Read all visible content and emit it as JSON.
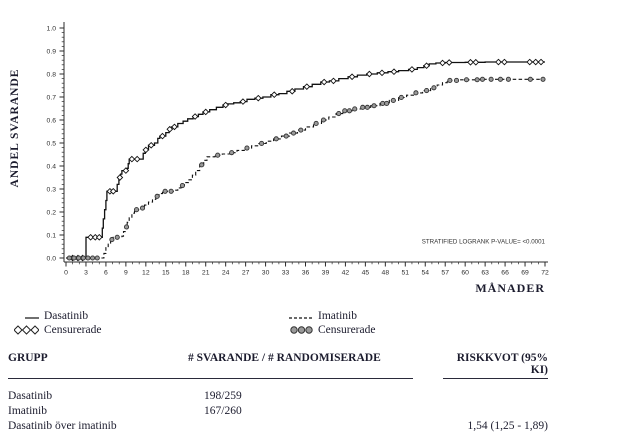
{
  "figure": {
    "background": "#ffffff",
    "text_color": "#1c1c2e",
    "curve_color": "#111111",
    "axis_color": "#2b2b2b",
    "censor_circle_fill": "#9a9a9a"
  },
  "chart": {
    "y_axis_label": "ANDEL SVARANDE",
    "x_axis_label": "MÅNADER",
    "annotation": "STRATIFIED LOGRANK P-VALUE= <0.0001"
  },
  "chart_data": {
    "type": "line",
    "subtype": "kaplan-meier-step",
    "title": "",
    "xlabel": "MÅNADER",
    "ylabel": "ANDEL SVARANDE",
    "xlim": [
      0,
      72
    ],
    "ylim": [
      0.0,
      1.0
    ],
    "grid": false,
    "legend_position": "below",
    "x_ticks": [
      0,
      3,
      6,
      9,
      12,
      15,
      18,
      21,
      24,
      27,
      30,
      33,
      36,
      39,
      42,
      45,
      48,
      51,
      54,
      57,
      60,
      63,
      66,
      69,
      72
    ],
    "y_ticks": [
      "0.0",
      "0.1",
      "0.2",
      "0.3",
      "0.4",
      "0.5",
      "0.6",
      "0.7",
      "0.8",
      "0.9",
      "1.0"
    ],
    "annotation": "STRATIFIED LOGRANK P-VALUE= <0.0001",
    "series": [
      {
        "name": "Dasatinib",
        "line": "solid",
        "marker": "diamond",
        "censored_label": "Censurerade",
        "steps": [
          [
            0,
            0
          ],
          [
            3,
            0
          ],
          [
            3,
            0.09
          ],
          [
            5.3,
            0.09
          ],
          [
            5.45,
            0.13
          ],
          [
            5.6,
            0.17
          ],
          [
            5.8,
            0.21
          ],
          [
            6,
            0.25
          ],
          [
            6.15,
            0.29
          ],
          [
            7.5,
            0.29
          ],
          [
            7.7,
            0.32
          ],
          [
            7.95,
            0.35
          ],
          [
            8.2,
            0.365
          ],
          [
            8.4,
            0.38
          ],
          [
            9.2,
            0.39
          ],
          [
            9.35,
            0.41
          ],
          [
            9.5,
            0.43
          ],
          [
            11.3,
            0.43
          ],
          [
            11.6,
            0.455
          ],
          [
            11.9,
            0.47
          ],
          [
            12.4,
            0.49
          ],
          [
            13.3,
            0.5
          ],
          [
            13.8,
            0.52
          ],
          [
            14.1,
            0.53
          ],
          [
            15,
            0.545
          ],
          [
            15.5,
            0.56
          ],
          [
            15.9,
            0.57
          ],
          [
            16.8,
            0.585
          ],
          [
            17.6,
            0.595
          ],
          [
            18.3,
            0.605
          ],
          [
            19.1,
            0.615
          ],
          [
            19.9,
            0.625
          ],
          [
            20.6,
            0.635
          ],
          [
            21.6,
            0.645
          ],
          [
            22.6,
            0.655
          ],
          [
            23.6,
            0.665
          ],
          [
            24.3,
            0.67
          ],
          [
            25.2,
            0.675
          ],
          [
            26.2,
            0.68
          ],
          [
            27.2,
            0.69
          ],
          [
            28.4,
            0.695
          ],
          [
            29.6,
            0.7
          ],
          [
            30.8,
            0.71
          ],
          [
            32,
            0.715
          ],
          [
            33.2,
            0.725
          ],
          [
            34.4,
            0.735
          ],
          [
            35.7,
            0.745
          ],
          [
            37,
            0.755
          ],
          [
            38.3,
            0.765
          ],
          [
            39.6,
            0.77
          ],
          [
            41,
            0.78
          ],
          [
            42.4,
            0.788
          ],
          [
            43.8,
            0.795
          ],
          [
            45.2,
            0.8
          ],
          [
            46.8,
            0.805
          ],
          [
            48.4,
            0.81
          ],
          [
            50,
            0.815
          ],
          [
            51.5,
            0.82
          ],
          [
            52.8,
            0.828
          ],
          [
            53.8,
            0.836
          ],
          [
            54.6,
            0.844
          ],
          [
            55.6,
            0.848
          ],
          [
            57,
            0.85
          ],
          [
            60,
            0.851
          ],
          [
            63,
            0.852
          ],
          [
            72,
            0.852
          ]
        ],
        "censored": [
          [
            1,
            0
          ],
          [
            1.8,
            0
          ],
          [
            2.5,
            0
          ],
          [
            3.7,
            0.09
          ],
          [
            4.4,
            0.09
          ],
          [
            5,
            0.09
          ],
          [
            6.6,
            0.29
          ],
          [
            7.1,
            0.29
          ],
          [
            8.1,
            0.35
          ],
          [
            9,
            0.38
          ],
          [
            9.9,
            0.43
          ],
          [
            10.7,
            0.43
          ],
          [
            12,
            0.47
          ],
          [
            12.8,
            0.49
          ],
          [
            14.5,
            0.53
          ],
          [
            15.6,
            0.56
          ],
          [
            16.3,
            0.57
          ],
          [
            19.4,
            0.615
          ],
          [
            21,
            0.635
          ],
          [
            24,
            0.665
          ],
          [
            26.6,
            0.68
          ],
          [
            28.9,
            0.695
          ],
          [
            31.3,
            0.71
          ],
          [
            34,
            0.725
          ],
          [
            36.2,
            0.745
          ],
          [
            38.8,
            0.765
          ],
          [
            40.2,
            0.77
          ],
          [
            43,
            0.788
          ],
          [
            45.6,
            0.8
          ],
          [
            47.5,
            0.805
          ],
          [
            49.3,
            0.81
          ],
          [
            52,
            0.82
          ],
          [
            54.2,
            0.836
          ],
          [
            56.6,
            0.848
          ],
          [
            57.6,
            0.85
          ],
          [
            60.8,
            0.851
          ],
          [
            61.6,
            0.851
          ],
          [
            65,
            0.852
          ],
          [
            65.9,
            0.852
          ],
          [
            69.7,
            0.852
          ],
          [
            70.6,
            0.852
          ],
          [
            71.4,
            0.852
          ]
        ]
      },
      {
        "name": "Imatinib",
        "line": "dashed",
        "marker": "circle",
        "censored_label": "Censurerade",
        "steps": [
          [
            0,
            0
          ],
          [
            5.5,
            0
          ],
          [
            5.7,
            0.02
          ],
          [
            6,
            0.045
          ],
          [
            6.35,
            0.065
          ],
          [
            6.7,
            0.08
          ],
          [
            7.1,
            0.09
          ],
          [
            8.4,
            0.095
          ],
          [
            8.65,
            0.115
          ],
          [
            8.9,
            0.135
          ],
          [
            9.2,
            0.155
          ],
          [
            9.5,
            0.175
          ],
          [
            9.9,
            0.195
          ],
          [
            10.3,
            0.21
          ],
          [
            11.3,
            0.217
          ],
          [
            11.8,
            0.23
          ],
          [
            12.4,
            0.243
          ],
          [
            13,
            0.255
          ],
          [
            13.5,
            0.268
          ],
          [
            14,
            0.28
          ],
          [
            14.5,
            0.29
          ],
          [
            16.3,
            0.295
          ],
          [
            16.8,
            0.305
          ],
          [
            17.3,
            0.315
          ],
          [
            17.8,
            0.328
          ],
          [
            18.4,
            0.34
          ],
          [
            19,
            0.36
          ],
          [
            19.5,
            0.38
          ],
          [
            20.1,
            0.405
          ],
          [
            20.7,
            0.425
          ],
          [
            21.2,
            0.44
          ],
          [
            22.4,
            0.447
          ],
          [
            23.5,
            0.452
          ],
          [
            24.6,
            0.458
          ],
          [
            25.7,
            0.468
          ],
          [
            26.8,
            0.478
          ],
          [
            27.9,
            0.488
          ],
          [
            29,
            0.498
          ],
          [
            30.1,
            0.508
          ],
          [
            31.2,
            0.518
          ],
          [
            32.4,
            0.53
          ],
          [
            33.6,
            0.543
          ],
          [
            34.8,
            0.556
          ],
          [
            36,
            0.57
          ],
          [
            37.2,
            0.585
          ],
          [
            38.4,
            0.6
          ],
          [
            39.5,
            0.613
          ],
          [
            40.6,
            0.628
          ],
          [
            41.6,
            0.64
          ],
          [
            43,
            0.648
          ],
          [
            44.4,
            0.655
          ],
          [
            45.8,
            0.662
          ],
          [
            47.2,
            0.672
          ],
          [
            48.6,
            0.685
          ],
          [
            50,
            0.698
          ],
          [
            51.2,
            0.708
          ],
          [
            52.4,
            0.718
          ],
          [
            53.6,
            0.728
          ],
          [
            54.8,
            0.74
          ],
          [
            55.8,
            0.752
          ],
          [
            56.6,
            0.762
          ],
          [
            57.3,
            0.772
          ],
          [
            59,
            0.775
          ],
          [
            62,
            0.777
          ],
          [
            72,
            0.777
          ]
        ],
        "censored": [
          [
            0.5,
            0
          ],
          [
            1.2,
            0
          ],
          [
            1.9,
            0
          ],
          [
            2.6,
            0
          ],
          [
            3.3,
            0
          ],
          [
            4,
            0
          ],
          [
            4.7,
            0
          ],
          [
            6.9,
            0.08
          ],
          [
            7.7,
            0.09
          ],
          [
            9.1,
            0.135
          ],
          [
            10.6,
            0.21
          ],
          [
            11.5,
            0.217
          ],
          [
            13.7,
            0.268
          ],
          [
            14.9,
            0.29
          ],
          [
            15.8,
            0.29
          ],
          [
            17.5,
            0.315
          ],
          [
            20.4,
            0.405
          ],
          [
            22.8,
            0.447
          ],
          [
            24.9,
            0.458
          ],
          [
            27.2,
            0.478
          ],
          [
            29.4,
            0.498
          ],
          [
            31.6,
            0.518
          ],
          [
            33.1,
            0.53
          ],
          [
            34.2,
            0.543
          ],
          [
            35.3,
            0.556
          ],
          [
            37.6,
            0.585
          ],
          [
            38.7,
            0.6
          ],
          [
            41,
            0.628
          ],
          [
            41.9,
            0.64
          ],
          [
            42.6,
            0.64
          ],
          [
            43.4,
            0.648
          ],
          [
            44.6,
            0.655
          ],
          [
            45.3,
            0.655
          ],
          [
            46.3,
            0.662
          ],
          [
            47.6,
            0.672
          ],
          [
            48.2,
            0.672
          ],
          [
            49.2,
            0.685
          ],
          [
            50.4,
            0.698
          ],
          [
            52.6,
            0.718
          ],
          [
            54.2,
            0.728
          ],
          [
            55.3,
            0.74
          ],
          [
            57.7,
            0.772
          ],
          [
            58.7,
            0.772
          ],
          [
            60.2,
            0.775
          ],
          [
            61.8,
            0.775
          ],
          [
            62.6,
            0.777
          ],
          [
            63.9,
            0.777
          ],
          [
            65.3,
            0.777
          ],
          [
            66.5,
            0.777
          ],
          [
            69.8,
            0.777
          ],
          [
            71.7,
            0.777
          ]
        ]
      }
    ]
  },
  "legend": {
    "dasatinib": {
      "label": "Dasatinib",
      "censored_label": "Censurerade"
    },
    "imatinib": {
      "label": "Imatinib",
      "censored_label": "Censurerade"
    }
  },
  "table": {
    "headers": [
      "GRUPP",
      "# SVARANDE / # RANDOMISERADE",
      "RISKKVOT (95% KI)"
    ],
    "rows": [
      {
        "group": "Dasatinib",
        "responders": "198/259",
        "risk": ""
      },
      {
        "group": "Imatinib",
        "responders": "167/260",
        "risk": ""
      },
      {
        "group": "Dasatinib över imatinib",
        "responders": "",
        "risk": "1,54 (1,25 - 1,89)"
      }
    ]
  }
}
